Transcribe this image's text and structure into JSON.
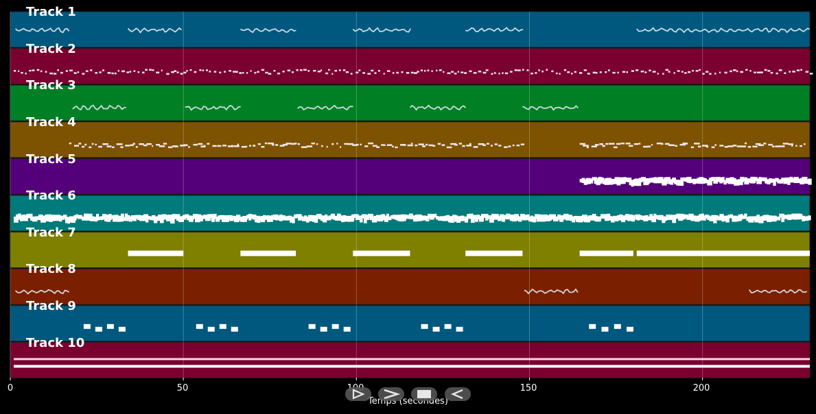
{
  "x_axis": {
    "label": "Temps (secondes)",
    "ticks": [
      "0",
      "50",
      "100",
      "150",
      "200"
    ],
    "range": [
      0,
      231
    ]
  },
  "tracks": [
    {
      "title": "Track 1",
      "color": "#00587e",
      "segments": [
        [
          1.5,
          17.5
        ],
        [
          34,
          50
        ],
        [
          66.5,
          83
        ],
        [
          99,
          116
        ],
        [
          131.5,
          148.5
        ],
        [
          181,
          231
        ]
      ],
      "style": "wave"
    },
    {
      "title": "Track 2",
      "color": "#7a0030",
      "segments": [
        [
          1,
          231
        ]
      ],
      "style": "sparse"
    },
    {
      "title": "Track 3",
      "color": "#007f24",
      "segments": [
        [
          18,
          34
        ],
        [
          50.5,
          67
        ],
        [
          83,
          99.5
        ],
        [
          115.5,
          132
        ],
        [
          148,
          164.5
        ]
      ],
      "style": "wave"
    },
    {
      "title": "Track 4",
      "color": "#7d5200",
      "segments": [
        [
          17,
          148
        ],
        [
          164.5,
          230
        ]
      ],
      "style": "dotted"
    },
    {
      "title": "Track 5",
      "color": "#54007a",
      "segments": [
        [
          164.5,
          180
        ],
        [
          180.5,
          231
        ]
      ],
      "style": "dense"
    },
    {
      "title": "Track 6",
      "color": "#007a7a",
      "segments": [
        [
          1,
          180
        ],
        [
          180.5,
          231
        ]
      ],
      "style": "dense"
    },
    {
      "title": "Track 7",
      "color": "#7f7f00",
      "segments": [
        [
          34,
          50
        ],
        [
          66.5,
          82.5
        ],
        [
          99,
          115.5
        ],
        [
          131.5,
          148
        ],
        [
          164.5,
          180
        ],
        [
          181,
          231
        ]
      ],
      "style": "block"
    },
    {
      "title": "Track 8",
      "color": "#7a2000",
      "segments": [
        [
          1.5,
          17
        ],
        [
          148.5,
          164.5
        ],
        [
          213.5,
          230.5
        ]
      ],
      "style": "wave"
    },
    {
      "title": "Track 9",
      "color": "#00587e",
      "segments": [
        [
          20,
          33.5
        ],
        [
          52.5,
          66
        ],
        [
          85,
          98.5
        ],
        [
          117.5,
          131
        ],
        [
          166,
          180.5
        ]
      ],
      "style": "notes"
    },
    {
      "title": "Track 10",
      "color": "#7a0030",
      "segments": [
        [
          1,
          231
        ]
      ],
      "style": "line"
    }
  ],
  "controls": [
    {
      "name": "play-outline-button",
      "icon": "play-outline-icon"
    },
    {
      "name": "forward-button",
      "icon": "chevron-right-icon"
    },
    {
      "name": "stop-button",
      "icon": "stop-icon"
    },
    {
      "name": "rewind-button",
      "icon": "rewind-icon"
    }
  ]
}
